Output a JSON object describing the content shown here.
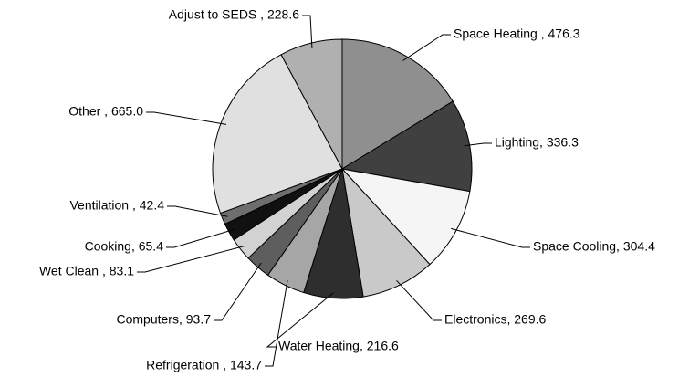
{
  "chart_data": {
    "type": "pie",
    "labels": [
      "Space Heating , 476.3",
      "Lighting, 336.3",
      "Space Cooling, 304.4",
      "Electronics, 269.6",
      "Water Heating, 216.6",
      "Refrigeration , 143.7",
      "Computers, 93.7",
      "Wet Clean , 83.1",
      "Cooking, 65.4",
      "Ventilation , 42.4",
      "Other , 665.0",
      "Adjust to SEDS , 228.6"
    ],
    "values": [
      476.3,
      336.3,
      304.4,
      269.6,
      216.6,
      143.7,
      93.7,
      83.1,
      65.4,
      42.4,
      665.0,
      228.6
    ],
    "colors": [
      "#8f8f8f",
      "#404040",
      "#f5f5f5",
      "#c9c9c9",
      "#2e2e2e",
      "#a6a6a6",
      "#5e5e5e",
      "#d2d2d2",
      "#111111",
      "#6e6e6e",
      "#e0e0e0",
      "#b0b0b0"
    ]
  }
}
